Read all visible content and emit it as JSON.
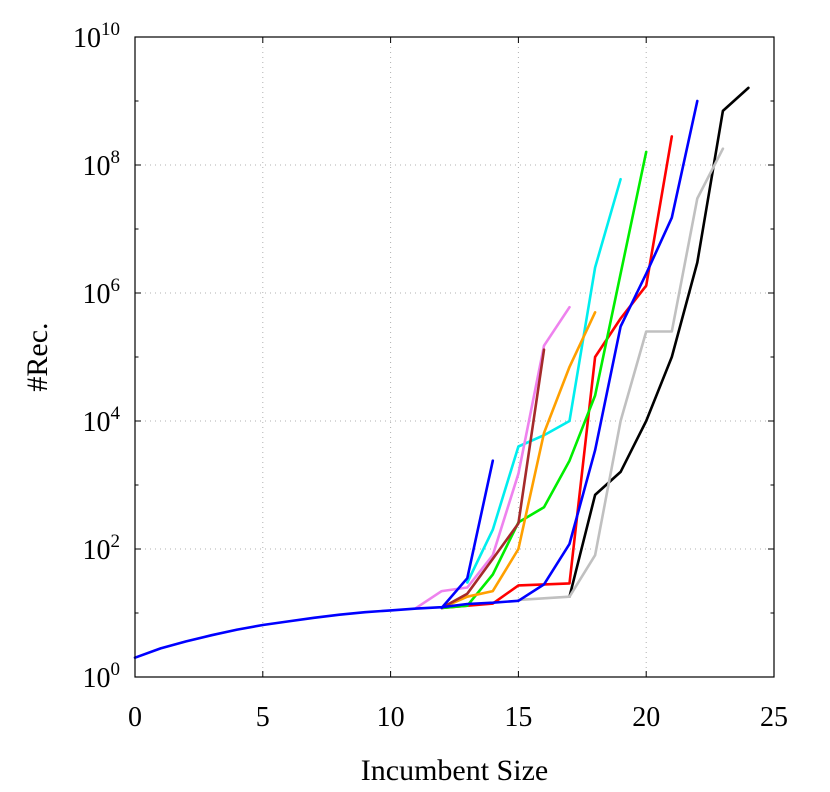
{
  "chart_data": {
    "type": "line",
    "title": "",
    "xlabel": "Incumbent Size",
    "ylabel": "#Rec.",
    "xlim": [
      0,
      25
    ],
    "ylim_log10": [
      0,
      10
    ],
    "y_scale": "log",
    "grid": true,
    "legend": "none",
    "x_ticks": [
      0,
      5,
      10,
      15,
      20,
      25
    ],
    "y_ticks": [
      {
        "base": "10",
        "exp": "0"
      },
      {
        "base": "10",
        "exp": "2"
      },
      {
        "base": "10",
        "exp": "4"
      },
      {
        "base": "10",
        "exp": "6"
      },
      {
        "base": "10",
        "exp": "8"
      },
      {
        "base": "10",
        "exp": "10"
      }
    ],
    "series": [
      {
        "color": "#000000",
        "x": [
          17,
          18,
          19,
          20,
          21,
          22,
          23,
          24
        ],
        "y": [
          18,
          700,
          1600,
          10000,
          100000,
          3000000,
          700000000,
          1600000000
        ]
      },
      {
        "color": "#c0c0c0",
        "x": [
          15,
          16,
          17,
          18,
          19,
          20,
          21,
          22,
          23
        ],
        "y": [
          16,
          17,
          18,
          80,
          10000,
          250000,
          250000,
          30000000,
          180000000
        ]
      },
      {
        "color": "#ff0000",
        "x": [
          12,
          13,
          14,
          15,
          16,
          17,
          18,
          19,
          20,
          21
        ],
        "y": [
          12,
          13,
          14,
          27,
          28,
          29,
          100000,
          400000,
          1300000,
          280000000
        ]
      },
      {
        "color": "#00ee00",
        "x": [
          12,
          13,
          14,
          15,
          16,
          17,
          18,
          19,
          20
        ],
        "y": [
          12,
          13,
          40,
          260,
          450,
          2400,
          25000,
          2000000,
          160000000
        ]
      },
      {
        "color": "#00eeee",
        "x": [
          13,
          14,
          15,
          16,
          17,
          18,
          19
        ],
        "y": [
          30,
          200,
          4000,
          6000,
          10000,
          2500000,
          60000000
        ]
      },
      {
        "color": "#ffa000",
        "x": [
          12,
          13,
          14,
          15,
          16,
          17,
          18
        ],
        "y": [
          12,
          18,
          22,
          100,
          6500,
          70000,
          500000
        ]
      },
      {
        "color": "#ee82ee",
        "x": [
          11,
          12,
          13,
          14,
          15,
          16,
          17
        ],
        "y": [
          12,
          22,
          25,
          80,
          1500,
          150000,
          600000
        ]
      },
      {
        "color": "#a52a2a",
        "x": [
          12,
          13,
          14,
          15,
          16
        ],
        "y": [
          12,
          20,
          70,
          250,
          130000
        ]
      },
      {
        "color": "#0000ff",
        "x": [
          12,
          13,
          14
        ],
        "y": [
          12,
          35,
          2400
        ]
      },
      {
        "color": "#0000ff",
        "x": [
          0,
          1,
          2,
          3,
          4,
          5,
          6,
          7,
          8,
          9,
          10,
          11,
          12,
          13,
          14,
          15,
          16,
          17,
          18,
          19,
          20,
          21,
          22
        ],
        "y": [
          2,
          2.8,
          3.6,
          4.5,
          5.5,
          6.5,
          7.4,
          8.4,
          9.4,
          10.3,
          11,
          11.7,
          12.3,
          13.8,
          14.5,
          15.5,
          28,
          120,
          3500,
          300000,
          2000000,
          15000000,
          1000000000
        ]
      }
    ]
  }
}
